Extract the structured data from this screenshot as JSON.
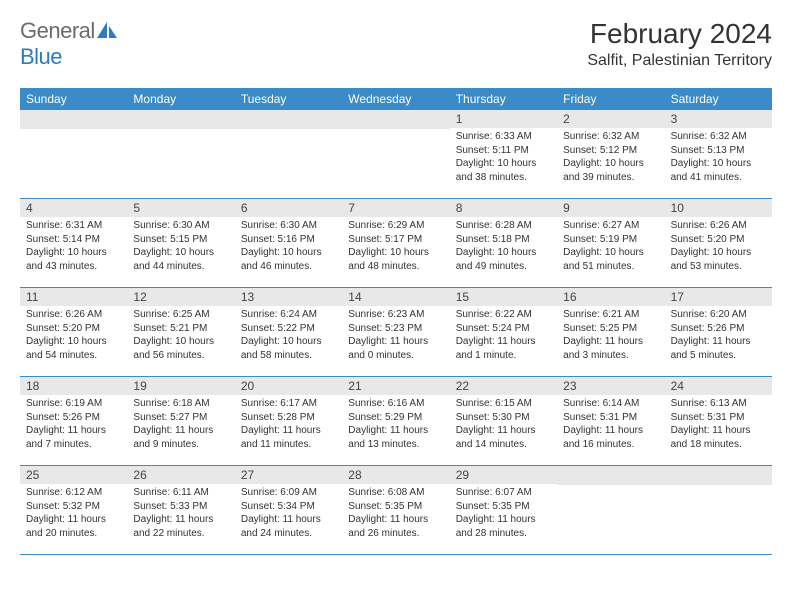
{
  "logo": {
    "general": "General",
    "blue": "Blue"
  },
  "header": {
    "month_title": "February 2024",
    "location": "Salfit, Palestinian Territory"
  },
  "colors": {
    "header_bg": "#3b8bc9",
    "daynum_bg": "#e8e8e8",
    "border": "#3b8bc9"
  },
  "weekdays": [
    "Sunday",
    "Monday",
    "Tuesday",
    "Wednesday",
    "Thursday",
    "Friday",
    "Saturday"
  ],
  "weeks": [
    [
      null,
      null,
      null,
      null,
      {
        "n": "1",
        "sr": "6:33 AM",
        "ss": "5:11 PM",
        "dl": "10 hours and 38 minutes."
      },
      {
        "n": "2",
        "sr": "6:32 AM",
        "ss": "5:12 PM",
        "dl": "10 hours and 39 minutes."
      },
      {
        "n": "3",
        "sr": "6:32 AM",
        "ss": "5:13 PM",
        "dl": "10 hours and 41 minutes."
      }
    ],
    [
      {
        "n": "4",
        "sr": "6:31 AM",
        "ss": "5:14 PM",
        "dl": "10 hours and 43 minutes."
      },
      {
        "n": "5",
        "sr": "6:30 AM",
        "ss": "5:15 PM",
        "dl": "10 hours and 44 minutes."
      },
      {
        "n": "6",
        "sr": "6:30 AM",
        "ss": "5:16 PM",
        "dl": "10 hours and 46 minutes."
      },
      {
        "n": "7",
        "sr": "6:29 AM",
        "ss": "5:17 PM",
        "dl": "10 hours and 48 minutes."
      },
      {
        "n": "8",
        "sr": "6:28 AM",
        "ss": "5:18 PM",
        "dl": "10 hours and 49 minutes."
      },
      {
        "n": "9",
        "sr": "6:27 AM",
        "ss": "5:19 PM",
        "dl": "10 hours and 51 minutes."
      },
      {
        "n": "10",
        "sr": "6:26 AM",
        "ss": "5:20 PM",
        "dl": "10 hours and 53 minutes."
      }
    ],
    [
      {
        "n": "11",
        "sr": "6:26 AM",
        "ss": "5:20 PM",
        "dl": "10 hours and 54 minutes."
      },
      {
        "n": "12",
        "sr": "6:25 AM",
        "ss": "5:21 PM",
        "dl": "10 hours and 56 minutes."
      },
      {
        "n": "13",
        "sr": "6:24 AM",
        "ss": "5:22 PM",
        "dl": "10 hours and 58 minutes."
      },
      {
        "n": "14",
        "sr": "6:23 AM",
        "ss": "5:23 PM",
        "dl": "11 hours and 0 minutes."
      },
      {
        "n": "15",
        "sr": "6:22 AM",
        "ss": "5:24 PM",
        "dl": "11 hours and 1 minute."
      },
      {
        "n": "16",
        "sr": "6:21 AM",
        "ss": "5:25 PM",
        "dl": "11 hours and 3 minutes."
      },
      {
        "n": "17",
        "sr": "6:20 AM",
        "ss": "5:26 PM",
        "dl": "11 hours and 5 minutes."
      }
    ],
    [
      {
        "n": "18",
        "sr": "6:19 AM",
        "ss": "5:26 PM",
        "dl": "11 hours and 7 minutes."
      },
      {
        "n": "19",
        "sr": "6:18 AM",
        "ss": "5:27 PM",
        "dl": "11 hours and 9 minutes."
      },
      {
        "n": "20",
        "sr": "6:17 AM",
        "ss": "5:28 PM",
        "dl": "11 hours and 11 minutes."
      },
      {
        "n": "21",
        "sr": "6:16 AM",
        "ss": "5:29 PM",
        "dl": "11 hours and 13 minutes."
      },
      {
        "n": "22",
        "sr": "6:15 AM",
        "ss": "5:30 PM",
        "dl": "11 hours and 14 minutes."
      },
      {
        "n": "23",
        "sr": "6:14 AM",
        "ss": "5:31 PM",
        "dl": "11 hours and 16 minutes."
      },
      {
        "n": "24",
        "sr": "6:13 AM",
        "ss": "5:31 PM",
        "dl": "11 hours and 18 minutes."
      }
    ],
    [
      {
        "n": "25",
        "sr": "6:12 AM",
        "ss": "5:32 PM",
        "dl": "11 hours and 20 minutes."
      },
      {
        "n": "26",
        "sr": "6:11 AM",
        "ss": "5:33 PM",
        "dl": "11 hours and 22 minutes."
      },
      {
        "n": "27",
        "sr": "6:09 AM",
        "ss": "5:34 PM",
        "dl": "11 hours and 24 minutes."
      },
      {
        "n": "28",
        "sr": "6:08 AM",
        "ss": "5:35 PM",
        "dl": "11 hours and 26 minutes."
      },
      {
        "n": "29",
        "sr": "6:07 AM",
        "ss": "5:35 PM",
        "dl": "11 hours and 28 minutes."
      },
      null,
      null
    ]
  ],
  "labels": {
    "sunrise": "Sunrise:",
    "sunset": "Sunset:",
    "daylight": "Daylight:"
  }
}
